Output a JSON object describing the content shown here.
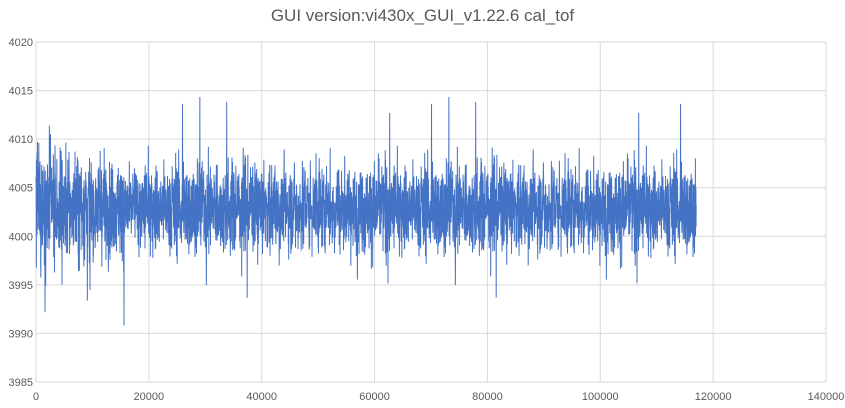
{
  "title": "GUI version:vi430x_GUI_v1.22.6 cal_tof",
  "colors": {
    "series": "#4472c4",
    "grid": "#d9d9d9",
    "axis_text": "#595959",
    "background": "#ffffff"
  },
  "chart_data": {
    "type": "line",
    "title": "GUI version:vi430x_GUI_v1.22.6 cal_tof",
    "xlabel": "",
    "ylabel": "",
    "xlim": [
      0,
      140000
    ],
    "ylim": [
      3985,
      4020
    ],
    "xticks": [
      0,
      20000,
      40000,
      60000,
      80000,
      100000,
      120000,
      140000
    ],
    "xtick_labels": [
      "0",
      "20000",
      "40000",
      "60000",
      "80000",
      "100000",
      "120000",
      "140000"
    ],
    "yticks": [
      3985,
      3990,
      3995,
      4000,
      4005,
      4010,
      4015,
      4020
    ],
    "ytick_labels": [
      "3985",
      "3990",
      "3995",
      "4000",
      "4005",
      "4010",
      "4015",
      "4020"
    ],
    "grid": true,
    "legend": "none",
    "series": [
      {
        "color": "#4472c4",
        "x_range": [
          0,
          117000
        ],
        "approx_mean": 4003,
        "typical_band": [
          3997,
          4009
        ],
        "observed_max": 4015,
        "observed_min": 3990,
        "approx_point_count": 117000
      }
    ]
  }
}
